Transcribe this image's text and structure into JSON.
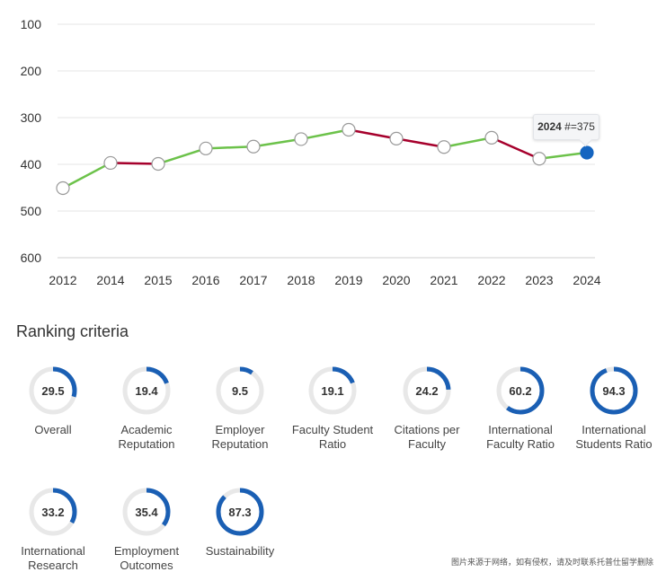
{
  "chart_data": {
    "type": "line",
    "title": "",
    "xlabel": "",
    "ylabel": "",
    "x": [
      "2012",
      "2014",
      "2015",
      "2016",
      "2017",
      "2018",
      "2019",
      "2020",
      "2021",
      "2022",
      "2023",
      "2024"
    ],
    "values": [
      451,
      397,
      399,
      366,
      362,
      346,
      326,
      345,
      363,
      343,
      388,
      375
    ],
    "ylim": [
      100,
      600
    ],
    "y_inverted": true,
    "yticks": [
      100,
      200,
      300,
      400,
      500,
      600
    ],
    "grid": true,
    "colors": {
      "up": "#6cc24a",
      "down": "#a6002c",
      "marker_fill": "#ffffff",
      "marker_stroke": "#999999",
      "highlight": "#1565c0",
      "grid": "#e6e6e6"
    },
    "tooltip": {
      "year": "2024",
      "rank_label": "#=375"
    }
  },
  "criteria": {
    "title": "Ranking criteria",
    "ring_color": "#1a5fb4",
    "track_color": "#e8e8e8",
    "items": [
      {
        "value": 29.5,
        "display": "29.5",
        "label": "Overall"
      },
      {
        "value": 19.4,
        "display": "19.4",
        "label": "Academic Reputation"
      },
      {
        "value": 9.5,
        "display": "9.5",
        "label": "Employer Reputation"
      },
      {
        "value": 19.1,
        "display": "19.1",
        "label": "Faculty Student Ratio"
      },
      {
        "value": 24.2,
        "display": "24.2",
        "label": "Citations per Faculty"
      },
      {
        "value": 60.2,
        "display": "60.2",
        "label": "International Faculty Ratio"
      },
      {
        "value": 94.3,
        "display": "94.3",
        "label": "International Students Ratio"
      },
      {
        "value": 33.2,
        "display": "33.2",
        "label": "International Research"
      },
      {
        "value": 35.4,
        "display": "35.4",
        "label": "Employment Outcomes"
      },
      {
        "value": 87.3,
        "display": "87.3",
        "label": "Sustainability"
      }
    ]
  },
  "watermark": "图片来源于网络，如有侵权，请及时联系托普仕留学删除"
}
